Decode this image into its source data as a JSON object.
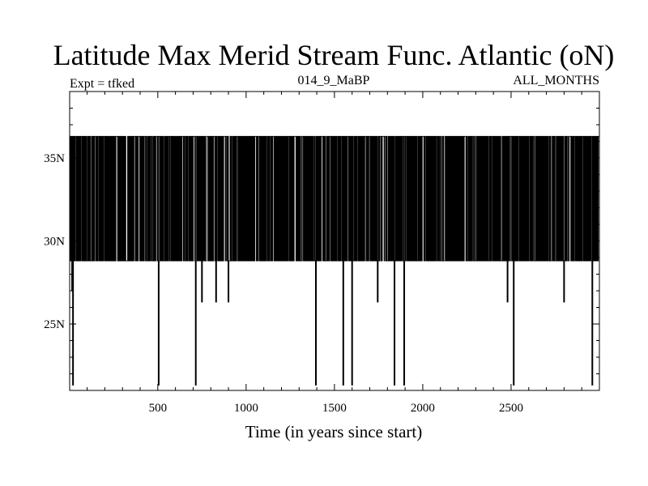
{
  "chart_data": {
    "type": "line",
    "title": "Latitude Max Merid Stream Func. Atlantic (oN)",
    "header_left": "Expt = tfked",
    "header_center": "014_9_MaBP",
    "header_right": "ALL_MONTHS",
    "xlabel": "Time (in years since start)",
    "ylabel": "",
    "xlim": [
      1,
      3000
    ],
    "ylim": [
      21,
      39
    ],
    "x_ticks": [
      500,
      1000,
      1500,
      2000,
      2500
    ],
    "y_ticks": [
      {
        "value": 25,
        "label": "25N"
      },
      {
        "value": 30,
        "label": "30N"
      },
      {
        "value": 35,
        "label": "35N"
      }
    ],
    "grid": false,
    "series": [
      {
        "color": "#000000",
        "levels": [
          28.8,
          36.3
        ],
        "note_pattern": "rapid switching between ~28.8N and ~36.3N every year",
        "drops": [
          {
            "x": 15,
            "y": 27.0
          },
          {
            "x": 20,
            "y": 21.3
          },
          {
            "x": 505,
            "y": 21.3
          },
          {
            "x": 715,
            "y": 21.3
          },
          {
            "x": 750,
            "y": 26.3
          },
          {
            "x": 830,
            "y": 26.3
          },
          {
            "x": 900,
            "y": 26.3
          },
          {
            "x": 1395,
            "y": 21.3
          },
          {
            "x": 1550,
            "y": 21.3
          },
          {
            "x": 1600,
            "y": 21.3
          },
          {
            "x": 1745,
            "y": 26.3
          },
          {
            "x": 1840,
            "y": 21.3
          },
          {
            "x": 1895,
            "y": 21.3
          },
          {
            "x": 2480,
            "y": 26.3
          },
          {
            "x": 2515,
            "y": 21.3
          },
          {
            "x": 2800,
            "y": 26.3
          },
          {
            "x": 2960,
            "y": 21.3
          }
        ]
      }
    ]
  }
}
